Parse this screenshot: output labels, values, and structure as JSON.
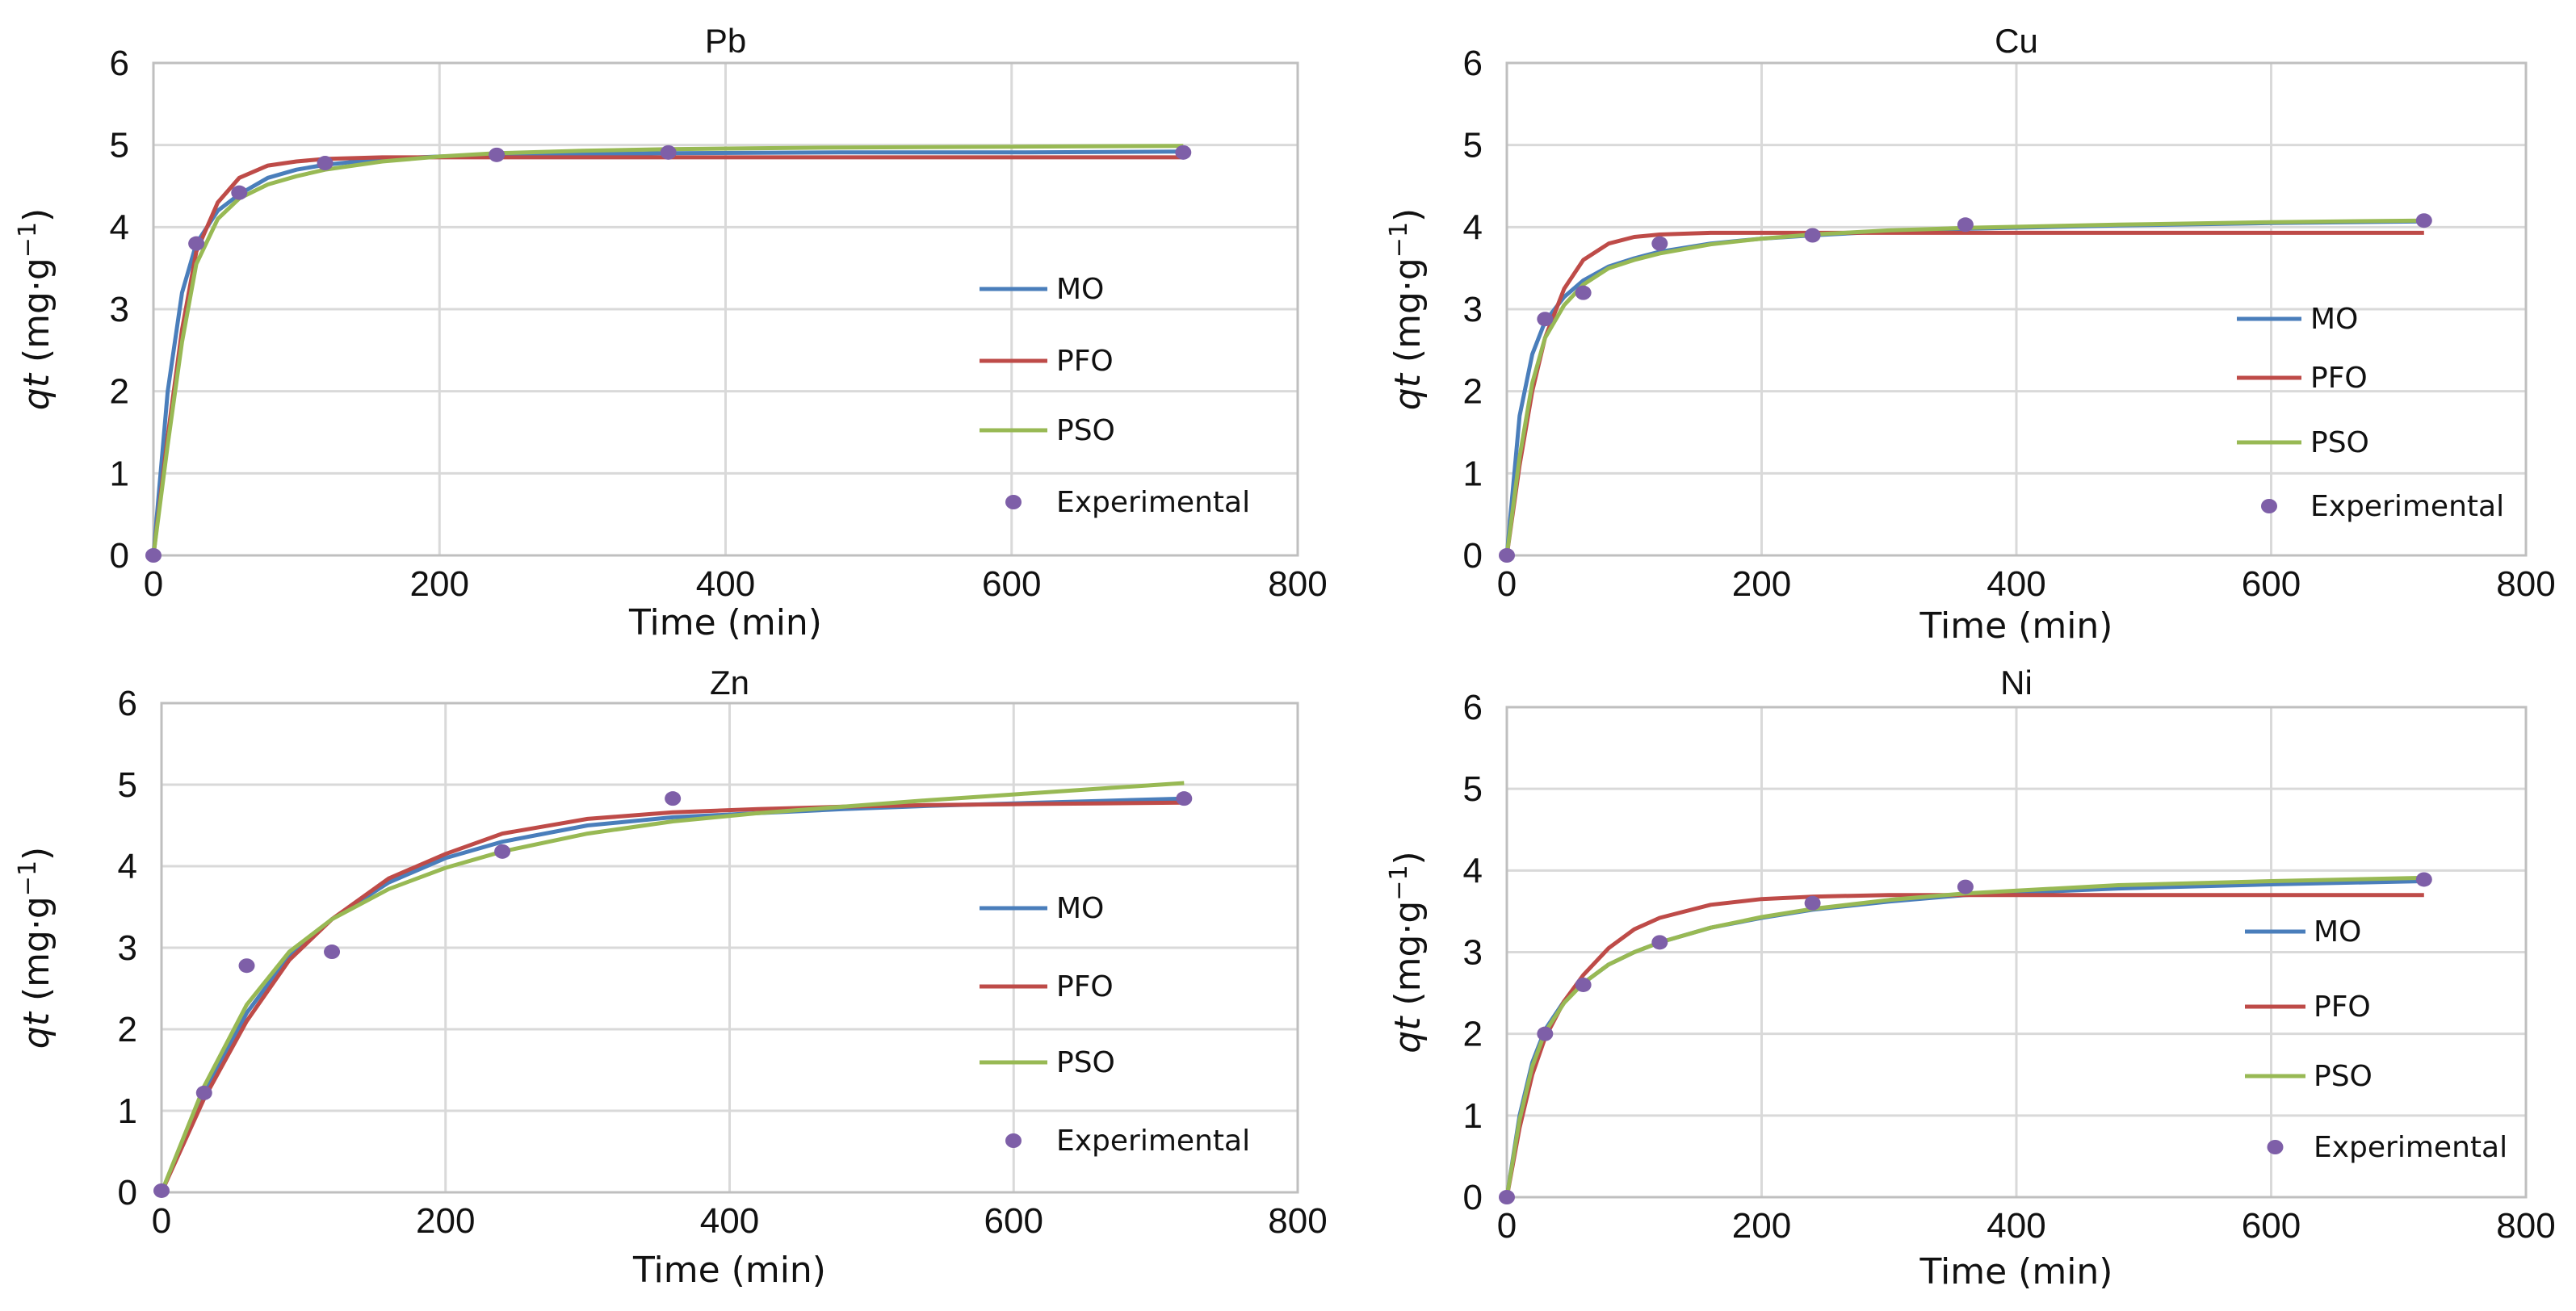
{
  "chart_data": [
    {
      "type": "line",
      "title": "Pb",
      "xlabel": "Time (min)",
      "ylabel_main": "qt",
      "ylabel_unit": "(mg·g",
      "ylabel_sup": "−1",
      "ylabel_close": ")",
      "xlim": [
        0,
        800
      ],
      "ylim": [
        0,
        6
      ],
      "xticks": [
        0,
        200,
        400,
        600,
        800
      ],
      "yticks": [
        0,
        1,
        2,
        3,
        4,
        5,
        6
      ],
      "grid": true,
      "legend": [
        "MO",
        "PFO",
        "PSO",
        "Experimental"
      ],
      "series": [
        {
          "name": "MO",
          "color": "#4a7ebb",
          "x": [
            0,
            10,
            20,
            30,
            45,
            60,
            80,
            100,
            120,
            160,
            200,
            240,
            300,
            360,
            480,
            600,
            720
          ],
          "y": [
            0,
            2.0,
            3.2,
            3.8,
            4.2,
            4.4,
            4.6,
            4.7,
            4.76,
            4.83,
            4.86,
            4.88,
            4.89,
            4.9,
            4.91,
            4.91,
            4.92
          ]
        },
        {
          "name": "PFO",
          "color": "#be4b48",
          "x": [
            0,
            10,
            20,
            30,
            45,
            60,
            80,
            100,
            120,
            160,
            200,
            240,
            300,
            360,
            480,
            600,
            720
          ],
          "y": [
            0,
            1.45,
            2.75,
            3.7,
            4.3,
            4.6,
            4.75,
            4.8,
            4.83,
            4.85,
            4.85,
            4.85,
            4.85,
            4.85,
            4.85,
            4.85,
            4.85
          ]
        },
        {
          "name": "PSO",
          "color": "#98b954",
          "x": [
            0,
            10,
            20,
            30,
            45,
            60,
            80,
            100,
            120,
            160,
            200,
            240,
            300,
            360,
            480,
            600,
            720
          ],
          "y": [
            0,
            1.35,
            2.6,
            3.55,
            4.1,
            4.35,
            4.52,
            4.62,
            4.7,
            4.8,
            4.86,
            4.9,
            4.93,
            4.95,
            4.97,
            4.98,
            4.99
          ]
        },
        {
          "name": "Experimental",
          "color": "#7e5fa8",
          "x": [
            0,
            30,
            60,
            120,
            240,
            360,
            720
          ],
          "y": [
            0,
            3.8,
            4.42,
            4.78,
            4.88,
            4.91,
            4.91
          ]
        }
      ]
    },
    {
      "type": "line",
      "title": "Cu",
      "xlabel": "Time (min)",
      "ylabel_main": "qt",
      "ylabel_unit": "(mg·g",
      "ylabel_sup": "−1",
      "ylabel_close": ")",
      "xlim": [
        0,
        800
      ],
      "ylim": [
        0,
        6
      ],
      "xticks": [
        0,
        200,
        400,
        600,
        800
      ],
      "yticks": [
        0,
        1,
        2,
        3,
        4,
        5,
        6
      ],
      "grid": true,
      "legend": [
        "MO",
        "PFO",
        "PSO",
        "Experimental"
      ],
      "series": [
        {
          "name": "MO",
          "color": "#4a7ebb",
          "x": [
            0,
            10,
            20,
            30,
            45,
            60,
            80,
            100,
            120,
            160,
            200,
            240,
            300,
            360,
            480,
            600,
            720
          ],
          "y": [
            0,
            1.7,
            2.45,
            2.85,
            3.15,
            3.35,
            3.52,
            3.62,
            3.7,
            3.8,
            3.86,
            3.9,
            3.95,
            3.98,
            4.02,
            4.05,
            4.07
          ]
        },
        {
          "name": "PFO",
          "color": "#be4b48",
          "x": [
            0,
            10,
            20,
            30,
            45,
            60,
            80,
            100,
            120,
            160,
            200,
            240,
            300,
            360,
            480,
            600,
            720
          ],
          "y": [
            0,
            1.1,
            2.0,
            2.65,
            3.25,
            3.6,
            3.8,
            3.88,
            3.91,
            3.93,
            3.93,
            3.93,
            3.93,
            3.93,
            3.93,
            3.93,
            3.93
          ]
        },
        {
          "name": "PSO",
          "color": "#98b954",
          "x": [
            0,
            10,
            20,
            30,
            45,
            60,
            80,
            100,
            120,
            160,
            200,
            240,
            300,
            360,
            480,
            600,
            720
          ],
          "y": [
            0,
            1.2,
            2.1,
            2.65,
            3.05,
            3.3,
            3.5,
            3.6,
            3.68,
            3.79,
            3.86,
            3.91,
            3.96,
            3.99,
            4.03,
            4.06,
            4.08
          ]
        },
        {
          "name": "Experimental",
          "color": "#7e5fa8",
          "x": [
            0,
            30,
            60,
            120,
            240,
            360,
            720
          ],
          "y": [
            0,
            2.88,
            3.2,
            3.8,
            3.9,
            4.03,
            4.08
          ]
        }
      ]
    },
    {
      "type": "line",
      "title": "Zn",
      "xlabel": "Time (min)",
      "ylabel_main": "qt",
      "ylabel_unit": "(mg·g",
      "ylabel_sup": "−1",
      "ylabel_close": ")",
      "xlim": [
        0,
        800
      ],
      "ylim": [
        0,
        6
      ],
      "xticks": [
        0,
        200,
        400,
        600,
        800
      ],
      "yticks": [
        0,
        1,
        2,
        3,
        4,
        5,
        6
      ],
      "grid": true,
      "legend": [
        "MO",
        "PFO",
        "PSO",
        "Experimental"
      ],
      "series": [
        {
          "name": "MO",
          "color": "#4a7ebb",
          "x": [
            0,
            30,
            60,
            90,
            120,
            160,
            200,
            240,
            300,
            360,
            420,
            480,
            540,
            600,
            660,
            720
          ],
          "y": [
            0,
            1.2,
            2.2,
            2.9,
            3.35,
            3.8,
            4.1,
            4.3,
            4.5,
            4.6,
            4.65,
            4.7,
            4.74,
            4.77,
            4.8,
            4.83
          ]
        },
        {
          "name": "PFO",
          "color": "#be4b48",
          "x": [
            0,
            30,
            60,
            90,
            120,
            160,
            200,
            240,
            300,
            360,
            420,
            480,
            540,
            600,
            660,
            720
          ],
          "y": [
            0,
            1.15,
            2.1,
            2.85,
            3.35,
            3.85,
            4.15,
            4.4,
            4.58,
            4.66,
            4.7,
            4.73,
            4.75,
            4.76,
            4.77,
            4.78
          ]
        },
        {
          "name": "PSO",
          "color": "#98b954",
          "x": [
            0,
            30,
            60,
            90,
            120,
            160,
            200,
            240,
            300,
            360,
            420,
            480,
            540,
            600,
            660,
            720
          ],
          "y": [
            0,
            1.3,
            2.3,
            2.95,
            3.35,
            3.72,
            3.98,
            4.18,
            4.4,
            4.55,
            4.65,
            4.73,
            4.81,
            4.88,
            4.95,
            5.02
          ]
        },
        {
          "name": "Experimental",
          "color": "#7e5fa8",
          "x": [
            0,
            30,
            60,
            120,
            240,
            360,
            720
          ],
          "y": [
            0.02,
            1.22,
            2.78,
            2.95,
            4.18,
            4.83,
            4.83
          ]
        }
      ]
    },
    {
      "type": "line",
      "title": "Ni",
      "xlabel": "Time (min)",
      "ylabel_main": "qt",
      "ylabel_unit": "(mg·g",
      "ylabel_sup": "−1",
      "ylabel_close": ")",
      "xlim": [
        0,
        800
      ],
      "ylim": [
        0,
        6
      ],
      "xticks": [
        0,
        200,
        400,
        600,
        800
      ],
      "yticks": [
        0,
        1,
        2,
        3,
        4,
        5,
        6
      ],
      "grid": true,
      "legend": [
        "MO",
        "PFO",
        "PSO",
        "Experimental"
      ],
      "series": [
        {
          "name": "MO",
          "color": "#4a7ebb",
          "x": [
            0,
            10,
            20,
            30,
            45,
            60,
            80,
            100,
            120,
            160,
            200,
            240,
            300,
            360,
            480,
            600,
            720
          ],
          "y": [
            0,
            1.0,
            1.65,
            2.05,
            2.4,
            2.62,
            2.85,
            3.0,
            3.12,
            3.3,
            3.42,
            3.52,
            3.62,
            3.7,
            3.78,
            3.83,
            3.87
          ]
        },
        {
          "name": "PFO",
          "color": "#be4b48",
          "x": [
            0,
            10,
            20,
            30,
            45,
            60,
            80,
            100,
            120,
            160,
            200,
            240,
            300,
            360,
            480,
            600,
            720
          ],
          "y": [
            0,
            0.85,
            1.5,
            1.95,
            2.4,
            2.72,
            3.05,
            3.28,
            3.42,
            3.58,
            3.65,
            3.68,
            3.7,
            3.7,
            3.7,
            3.7,
            3.7
          ]
        },
        {
          "name": "PSO",
          "color": "#98b954",
          "x": [
            0,
            10,
            20,
            30,
            45,
            60,
            80,
            100,
            120,
            160,
            200,
            240,
            300,
            360,
            480,
            600,
            720
          ],
          "y": [
            0,
            0.95,
            1.6,
            2.02,
            2.38,
            2.62,
            2.85,
            3.0,
            3.12,
            3.3,
            3.43,
            3.53,
            3.64,
            3.72,
            3.82,
            3.87,
            3.91
          ]
        },
        {
          "name": "Experimental",
          "color": "#7e5fa8",
          "x": [
            0,
            30,
            60,
            120,
            240,
            360,
            720
          ],
          "y": [
            0,
            2.0,
            2.6,
            3.12,
            3.6,
            3.8,
            3.89
          ]
        }
      ]
    }
  ]
}
